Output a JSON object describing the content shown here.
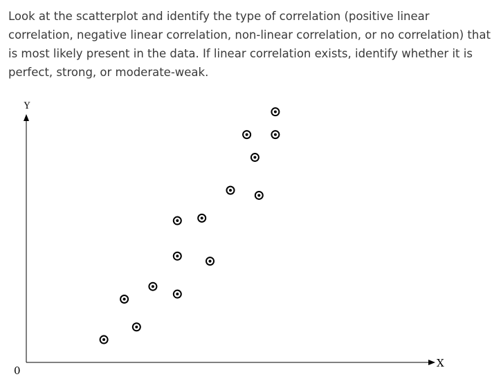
{
  "question": {
    "text": "Look at the scatterplot and identify the type of correlation (positive linear correlation, negative linear correlation, non-linear correlation, or no correlation) that is most likely present in the data. If linear correlation exists, identify whether it is perfect, strong, or moderate-weak."
  },
  "chart_data": {
    "type": "scatter",
    "title": "",
    "xlabel": "X",
    "ylabel": "Y",
    "origin_label": "0",
    "xlim": [
      0,
      100
    ],
    "ylim": [
      0,
      100
    ],
    "grid": false,
    "marker": "circled-dot",
    "marker_color": "#000000",
    "points": [
      {
        "x": 19,
        "y": 9
      },
      {
        "x": 24,
        "y": 25
      },
      {
        "x": 27,
        "y": 14
      },
      {
        "x": 31,
        "y": 30
      },
      {
        "x": 37,
        "y": 27
      },
      {
        "x": 37,
        "y": 42
      },
      {
        "x": 37,
        "y": 56
      },
      {
        "x": 43,
        "y": 57
      },
      {
        "x": 45,
        "y": 40
      },
      {
        "x": 50,
        "y": 68
      },
      {
        "x": 54,
        "y": 90
      },
      {
        "x": 56,
        "y": 81
      },
      {
        "x": 57,
        "y": 66
      },
      {
        "x": 61,
        "y": 90
      },
      {
        "x": 61,
        "y": 99
      }
    ]
  }
}
